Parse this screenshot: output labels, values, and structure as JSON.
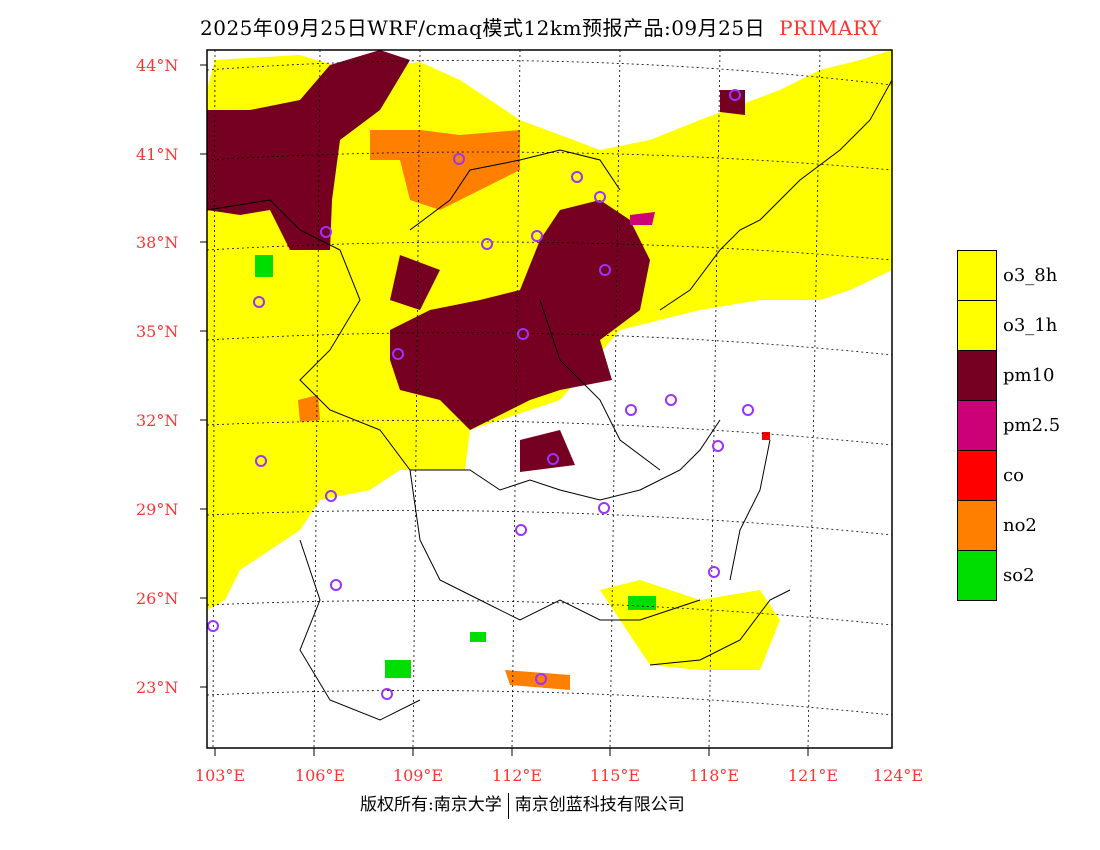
{
  "title": {
    "main": "2025年09月25日WRF/cmaq模式12km预报产品:09月25日",
    "tag": "PRIMARY"
  },
  "lat_labels": [
    "44°N",
    "41°N",
    "38°N",
    "35°N",
    "32°N",
    "29°N",
    "26°N",
    "23°N"
  ],
  "lon_labels": [
    "103°E",
    "106°E",
    "109°E",
    "112°E",
    "115°E",
    "118°E",
    "121°E",
    "124°E"
  ],
  "legend": [
    {
      "label": "o3_8h",
      "color": "#ffff00"
    },
    {
      "label": "o3_1h",
      "color": "#ffff00"
    },
    {
      "label": "pm10",
      "color": "#760022"
    },
    {
      "label": "pm2.5",
      "color": "#cc0077"
    },
    {
      "label": "co",
      "color": "#ff0000"
    },
    {
      "label": "no2",
      "color": "#ff7f00"
    },
    {
      "label": "so2",
      "color": "#00dd00"
    }
  ],
  "footer": {
    "left": "版权所有:南京大学",
    "right": "南京创蓝科技有限公司"
  }
}
